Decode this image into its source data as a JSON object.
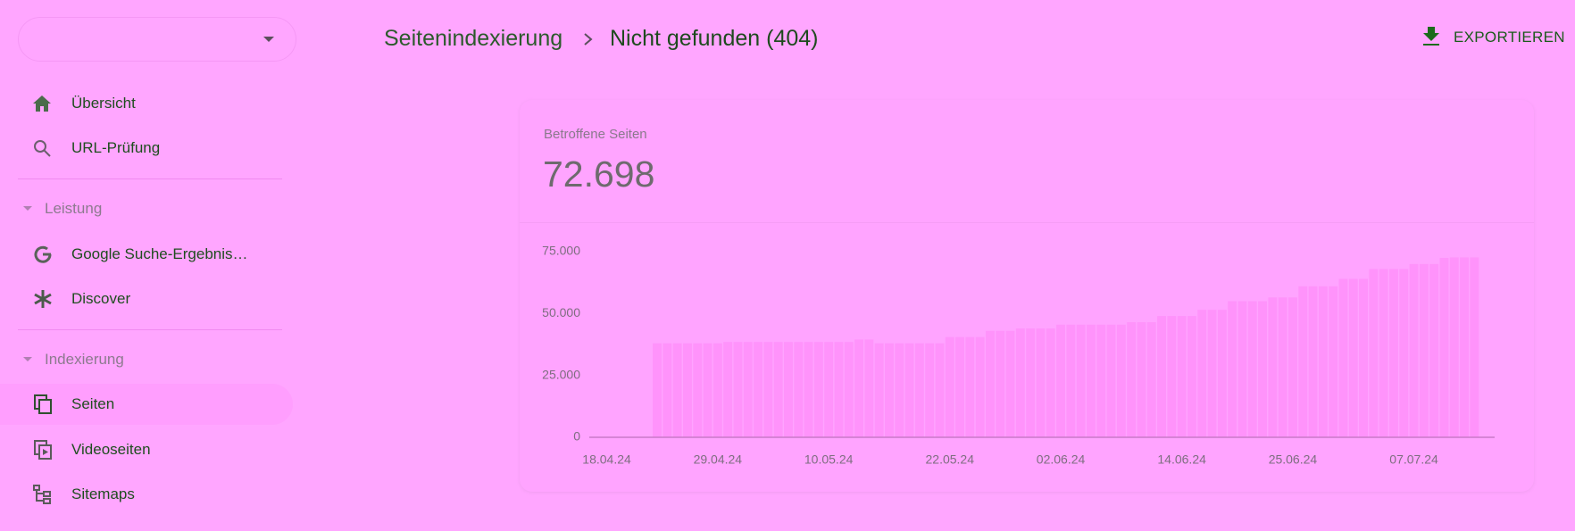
{
  "sidebar": {
    "items": [
      "Übersicht",
      "URL-Prüfung"
    ],
    "sections": [
      {
        "title": "Leistung",
        "items": [
          "Google Suche-Ergebnis…",
          "Discover"
        ]
      },
      {
        "title": "Indexierung",
        "items": [
          "Seiten",
          "Videoseiten",
          "Sitemaps"
        ]
      }
    ]
  },
  "breadcrumb": {
    "parent": "Seitenindexierung",
    "current": "Nicht gefunden (404)"
  },
  "export": "EXPORTIEREN",
  "card": {
    "label": "Betroffene Seiten",
    "value": "72.698"
  },
  "chart_data": {
    "type": "bar",
    "color": "#ff93fb",
    "grid": false,
    "categories": [
      null,
      "18.04.24",
      null,
      null,
      null,
      null,
      null,
      null,
      null,
      null,
      null,
      null,
      "29.04.24",
      null,
      null,
      null,
      null,
      null,
      null,
      null,
      null,
      null,
      null,
      "10.05.24",
      null,
      null,
      null,
      null,
      null,
      null,
      null,
      null,
      null,
      null,
      null,
      "22.05.24",
      null,
      null,
      null,
      null,
      null,
      null,
      null,
      null,
      null,
      null,
      "02.06.24",
      null,
      null,
      null,
      null,
      null,
      null,
      null,
      null,
      null,
      null,
      null,
      "14.06.24",
      null,
      null,
      null,
      null,
      null,
      null,
      null,
      null,
      null,
      null,
      "25.06.24",
      null,
      null,
      null,
      null,
      null,
      null,
      null,
      null,
      null,
      null,
      null,
      "07.07.24",
      null,
      null,
      null,
      null,
      null,
      null
    ],
    "values": [
      0,
      0,
      0,
      0,
      0,
      0,
      38000,
      38000,
      38000,
      38000,
      38000,
      38000,
      38000,
      38500,
      38500,
      38500,
      38500,
      38500,
      38500,
      38500,
      38500,
      38500,
      38500,
      38500,
      38500,
      38500,
      39500,
      39500,
      38000,
      38000,
      38000,
      38000,
      38000,
      38000,
      38000,
      40500,
      40500,
      40500,
      40500,
      43000,
      43000,
      43000,
      44000,
      44000,
      44000,
      44000,
      45500,
      45500,
      45500,
      45500,
      45500,
      45500,
      45500,
      46500,
      46500,
      46500,
      49000,
      49000,
      49000,
      49000,
      51500,
      51500,
      51500,
      55000,
      55000,
      55000,
      55000,
      56500,
      56500,
      56500,
      61000,
      61000,
      61000,
      61000,
      64000,
      64000,
      64000,
      68000,
      68000,
      68000,
      68000,
      70000,
      70000,
      70000,
      72500,
      72698,
      72698,
      72698
    ],
    "ylim": [
      0,
      75000
    ],
    "yticks": [
      0,
      {
        "value": 25000,
        "label": "25.000"
      },
      {
        "value": 50000,
        "label": "50.000"
      },
      {
        "value": 75000,
        "label": "75.000"
      }
    ]
  }
}
